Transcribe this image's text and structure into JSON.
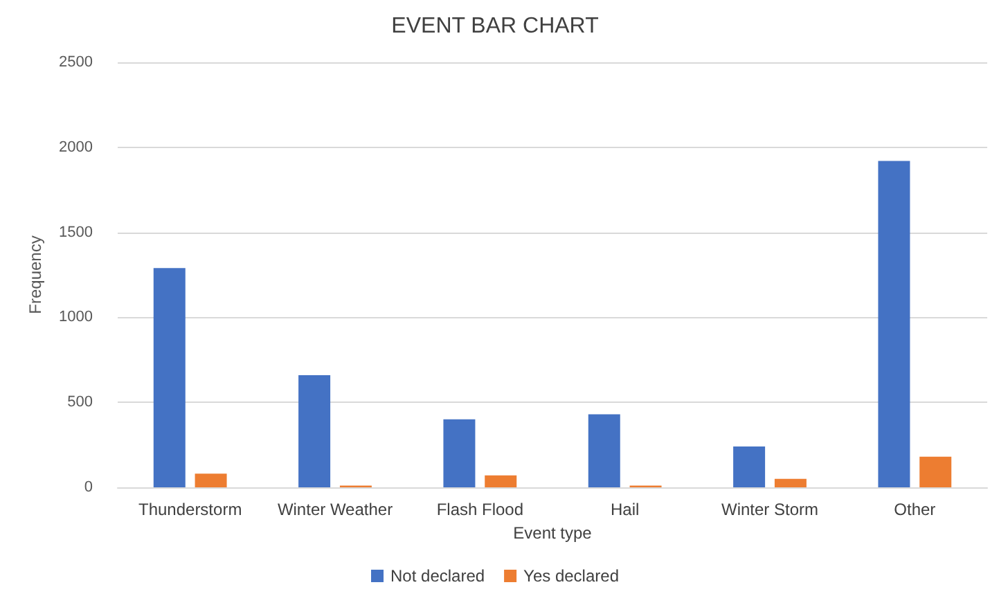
{
  "chart_data": {
    "type": "bar",
    "title": "EVENT BAR CHART",
    "xlabel": "Event type",
    "ylabel": "Frequency",
    "categories": [
      "Thunderstorm",
      "Winter Weather",
      "Flash Flood",
      "Hail",
      "Winter Storm",
      "Other"
    ],
    "series": [
      {
        "name": "Not declared",
        "color": "#4472c4",
        "values": [
          1290,
          660,
          400,
          430,
          240,
          1920
        ]
      },
      {
        "name": "Yes declared",
        "color": "#ed7d31",
        "values": [
          80,
          10,
          70,
          10,
          50,
          180
        ]
      }
    ],
    "ylim": [
      0,
      2500
    ],
    "yticks": [
      0,
      500,
      1000,
      1500,
      2000,
      2500
    ],
    "grid": "y",
    "legend": "bottom"
  }
}
